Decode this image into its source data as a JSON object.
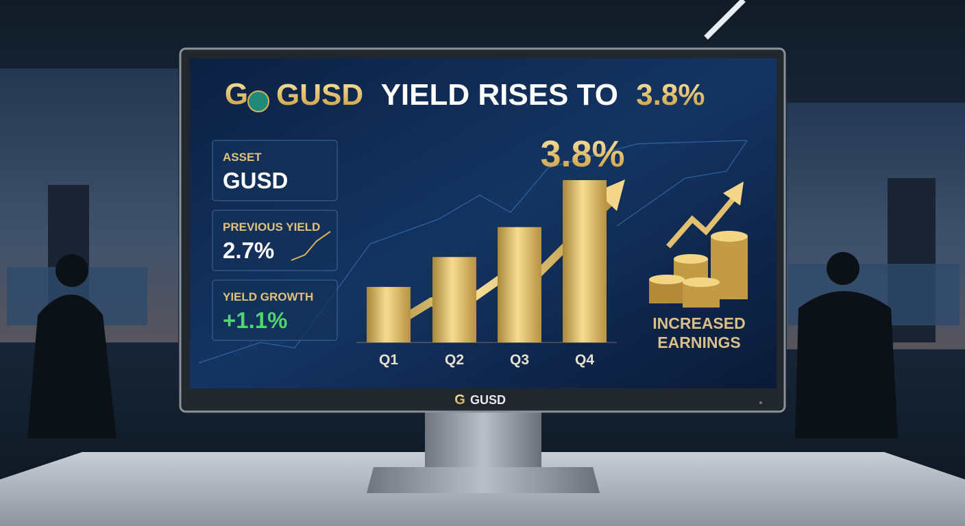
{
  "header": {
    "logo": "G",
    "title_parts": [
      "GUSD",
      "YIELD RISES TO",
      "3.8%"
    ]
  },
  "cards": [
    {
      "label": "ASSET",
      "value": "GUSD"
    },
    {
      "label": "PREVIOUS YIELD",
      "value": "2.7%"
    },
    {
      "label": "YIELD GROWTH",
      "value": "+1.1%"
    }
  ],
  "chart_data": {
    "type": "bar",
    "categories": [
      "Q1",
      "Q2",
      "Q3",
      "Q4"
    ],
    "values": [
      1.3,
      2.0,
      2.7,
      3.8
    ],
    "value_labels": [
      null,
      null,
      null,
      "3.8%"
    ],
    "color": "#d9b45a"
  },
  "side_caption": [
    "INCREASED",
    "EARNINGS"
  ],
  "monitor": {
    "logo": "G",
    "brand": "GUSD"
  }
}
